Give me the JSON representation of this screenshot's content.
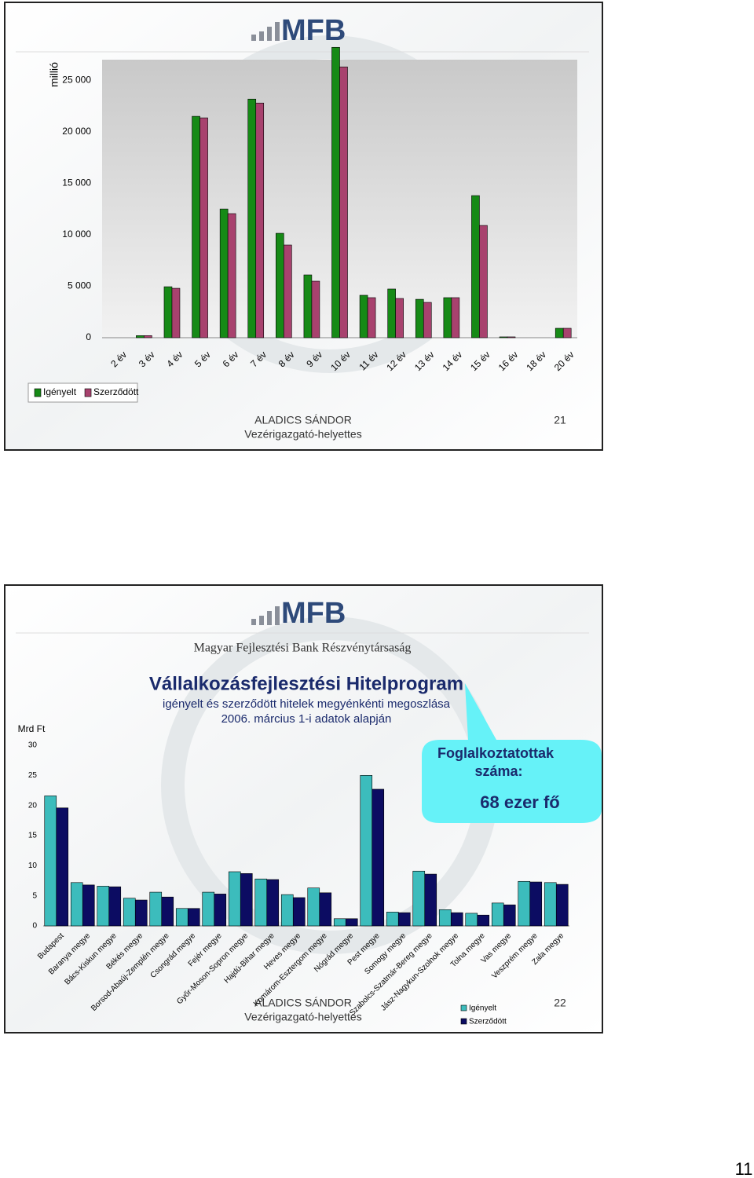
{
  "logo": "MFB",
  "bank_name": "Magyar Fejlesztési Bank Részvénytársaság",
  "slides": [
    {
      "presenter": "ALADICS SÁNDOR",
      "role": "Vezérigazgató-helyettes",
      "number": "21"
    },
    {
      "presenter": "ALADICS SÁNDOR",
      "role": "Vezérigazgató-helyettes",
      "number": "22"
    }
  ],
  "callout": {
    "lines": [
      "Foglalkoztatottak",
      "száma:"
    ],
    "value": "68 ezer fő"
  },
  "page_number": "11",
  "chart_data": [
    {
      "type": "bar",
      "y_label": "millió",
      "categories": [
        "2 év",
        "3 év",
        "4 év",
        "5 év",
        "6 év",
        "7 év",
        "8 év",
        "9 év",
        "10 év",
        "11 év",
        "12 év",
        "13 év",
        "14 év",
        "15 év",
        "16 év",
        "18 év",
        "20 év"
      ],
      "series": [
        {
          "name": "Igényelt",
          "color": "#168a16",
          "values": [
            0,
            200,
            4950,
            21500,
            12500,
            23170,
            10140,
            6100,
            28200,
            4120,
            4730,
            3730,
            3890,
            13800,
            80,
            0,
            915
          ]
        },
        {
          "name": "Szerződött",
          "color": "#a8426e",
          "values": [
            0,
            200,
            4800,
            21350,
            12050,
            22790,
            9000,
            5490,
            26300,
            3890,
            3810,
            3430,
            3890,
            10900,
            80,
            0,
            915
          ]
        }
      ],
      "ylim": [
        0,
        27000
      ],
      "yticks": [
        0,
        {
          "value": 5000,
          "label": "5 000"
        },
        {
          "value": 10000,
          "label": "10 000"
        },
        {
          "value": 15000,
          "label": "15 000"
        },
        {
          "value": 20000,
          "label": "20 000"
        },
        {
          "value": 25000,
          "label": "25 000"
        }
      ],
      "grid": false,
      "legend": "bottom-left"
    },
    {
      "type": "bar",
      "title": "Vállalkozásfejlesztési Hitelprogram",
      "subtitle": [
        "igényelt és szerződött hitelek megyénkénti megoszlása",
        "2006. március 1-i adatok alapján"
      ],
      "y_label": "Mrd Ft",
      "categories": [
        "Budapest",
        "Baranya megye",
        "Bács-Kiskun megye",
        "Békés megye",
        "Borsod-Abaúj-Zemplén megye",
        "Csongrád megye",
        "Fejér megye",
        "Győr-Moson-Sopron megye",
        "Hajdú-Bihar megye",
        "Heves megye",
        "Komárom-Esztergom megye",
        "Nógrád megye",
        "Pest megye",
        "Somogy megye",
        "Szabolcs-Szatmár-Bereg megye",
        "Jász-Nagykun-Szolnok megye",
        "Tolna megye",
        "Vas megye",
        "Veszprém megye",
        "Zala megye"
      ],
      "series": [
        {
          "name": "Igényelt",
          "color": "#3cbcbc",
          "values": [
            21.6,
            7.2,
            6.6,
            4.6,
            5.6,
            2.9,
            5.6,
            9.0,
            7.8,
            5.2,
            6.3,
            1.2,
            25.0,
            2.3,
            9.1,
            2.7,
            2.1,
            3.8,
            7.4,
            7.2
          ]
        },
        {
          "name": "Szerződött",
          "color": "#0c0c62",
          "values": [
            19.6,
            6.8,
            6.5,
            4.3,
            4.8,
            2.9,
            5.3,
            8.7,
            7.7,
            4.7,
            5.5,
            1.2,
            22.7,
            2.2,
            8.6,
            2.2,
            1.8,
            3.5,
            7.3,
            6.9
          ]
        }
      ],
      "ylim": [
        0,
        30
      ],
      "yticks": [
        0,
        5,
        10,
        15,
        20,
        25,
        30
      ],
      "grid": false,
      "legend": "bottom-right"
    }
  ]
}
